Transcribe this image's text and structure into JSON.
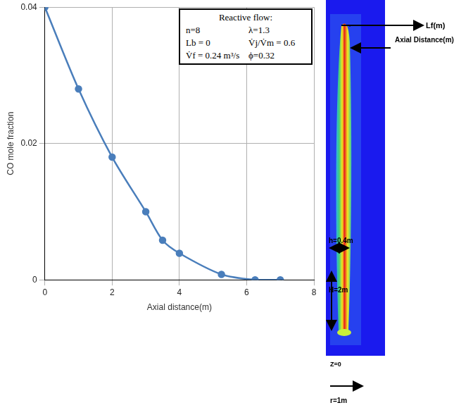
{
  "chart_data": {
    "type": "line",
    "x_label": "Axial distance(m)",
    "y_label": "CO mole fraction",
    "x": [
      0,
      1,
      2,
      3,
      3.5,
      4,
      5.25,
      6.25,
      7
    ],
    "values": [
      0.04,
      0.028,
      0.018,
      0.01,
      0.0058,
      0.0039,
      0.0008,
      0,
      0
    ],
    "color": "#4a7ebb",
    "marker": "circle",
    "line_style": "solid",
    "xlim": [
      0,
      8
    ],
    "xticks": [
      0,
      2,
      4,
      6,
      8
    ],
    "ylim": [
      0,
      0.04
    ],
    "yticks": [
      0,
      0.02,
      0.04
    ],
    "grid": true,
    "annotations": [
      "Reactive flow:",
      "n=8",
      "λ=1.3",
      "Lb = 0",
      "V̇j/V̇m = 0.6",
      "V̇f = 0.24 m³/s",
      "ϕ=0.32"
    ]
  },
  "diagram": {
    "flame_length": "Lf(m)",
    "axial_distance": "Axial Distance(m)",
    "h": "h=0.4m",
    "H": "H=2m",
    "z0": "Z=0",
    "r": "r=1m"
  }
}
